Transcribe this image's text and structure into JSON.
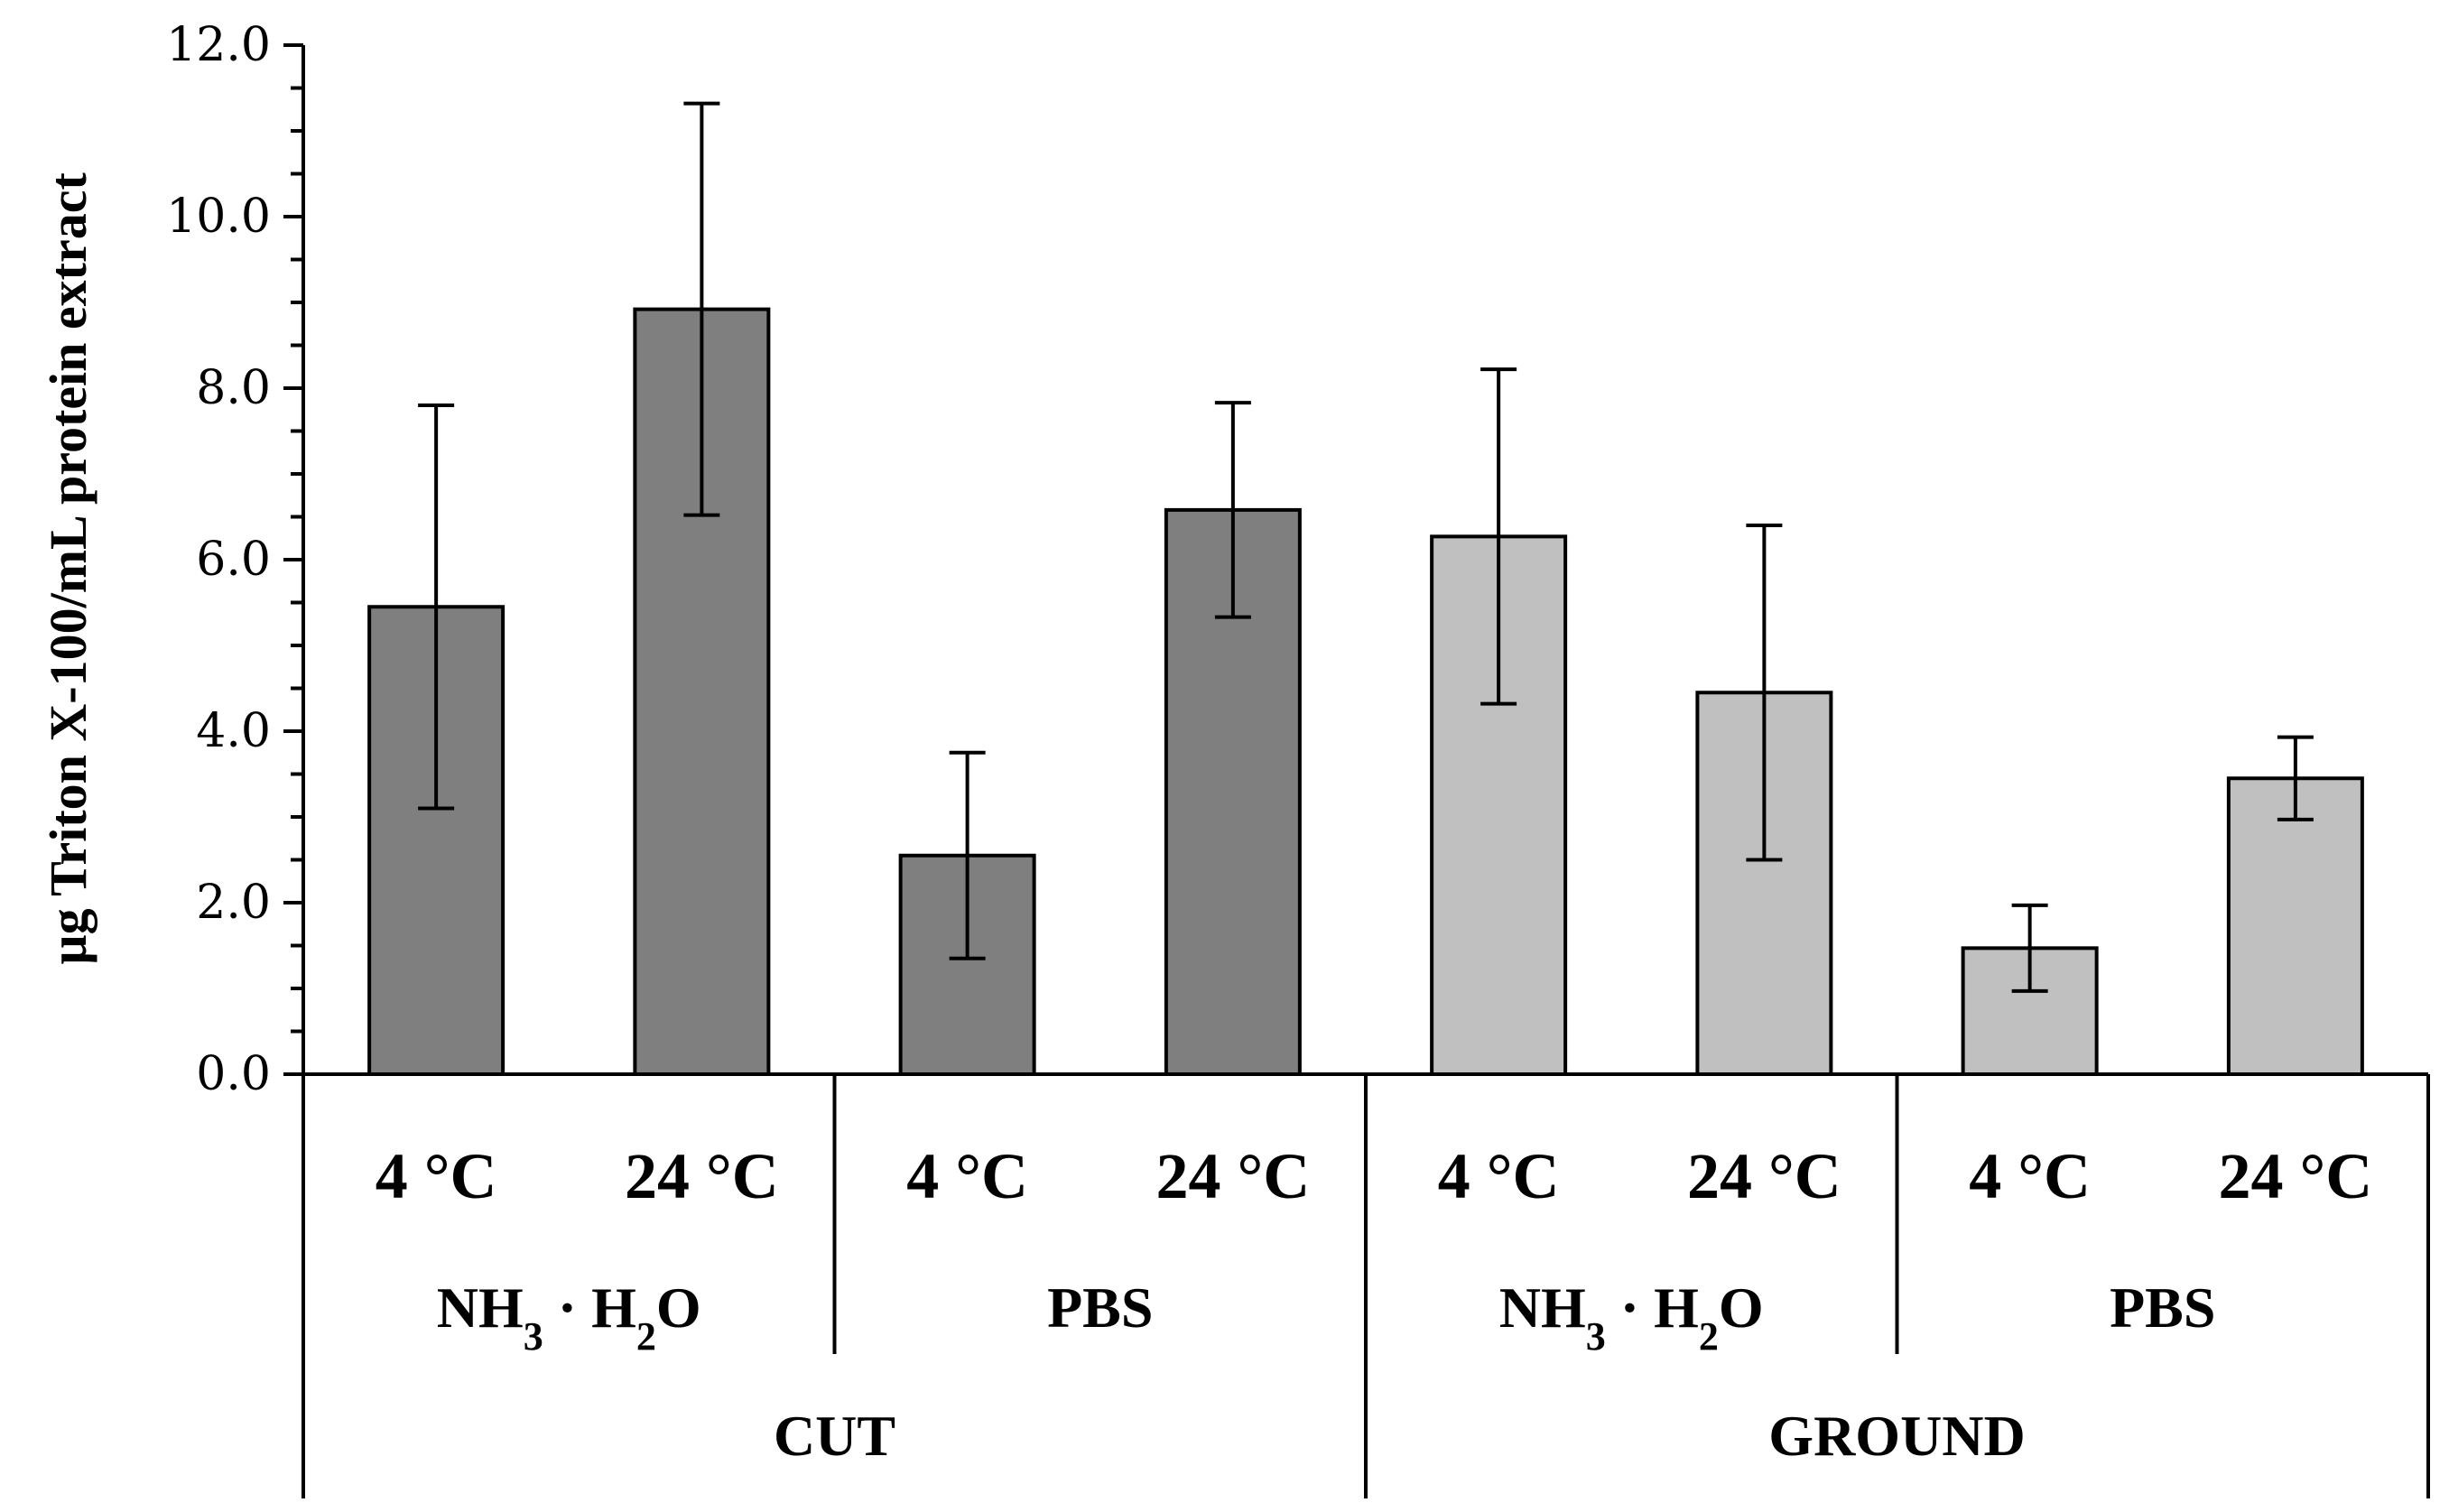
{
  "chart_data": {
    "type": "bar",
    "title": "",
    "xlabel": "",
    "ylabel": "µg Triton X-100/mL protein extract",
    "ylim": [
      0,
      12
    ],
    "yticks": [
      0,
      2,
      4,
      6,
      8,
      10,
      12
    ],
    "ytick_labels": [
      "0.0",
      "2.0",
      "4.0",
      "6.0",
      "8.0",
      "10.0",
      "12.0"
    ],
    "categories": [
      "4 °C",
      "24 °C",
      "4 °C",
      "24 °C",
      "4 °C",
      "24 °C",
      "4 °C",
      "24 °C"
    ],
    "values": [
      5.45,
      8.92,
      2.55,
      6.58,
      6.27,
      4.45,
      1.47,
      3.45
    ],
    "errors": [
      2.35,
      2.4,
      1.2,
      1.25,
      1.95,
      1.95,
      0.5,
      0.48
    ],
    "bar_colors": [
      "#7f7f7f",
      "#7f7f7f",
      "#7f7f7f",
      "#7f7f7f",
      "#c0c0c0",
      "#c0c0c0",
      "#c0c0c0",
      "#c0c0c0"
    ],
    "solvent_groups": [
      {
        "label_main": "NH",
        "sub1": "3",
        "mid": " · H",
        "sub2": "2",
        "label_end": "O"
      },
      {
        "label_main": "PBS",
        "sub1": "",
        "mid": "",
        "sub2": "",
        "label_end": ""
      },
      {
        "label_main": "NH",
        "sub1": "3",
        "mid": " · H",
        "sub2": "2",
        "label_end": "O"
      },
      {
        "label_main": "PBS",
        "sub1": "",
        "mid": "",
        "sub2": "",
        "label_end": ""
      }
    ],
    "process_groups": [
      "CUT",
      "GROUND"
    ]
  }
}
